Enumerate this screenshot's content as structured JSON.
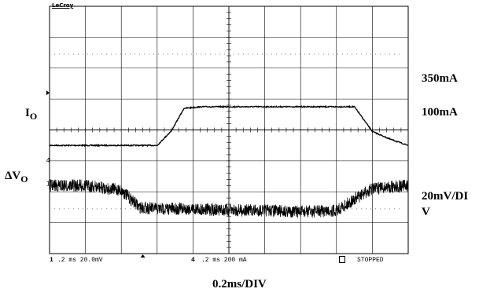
{
  "app": {
    "brand": "LeCroy",
    "status_bar": {
      "ch1_marker": "1",
      "ch1_setting": ".2 ms 20.0mV",
      "ch4_marker": "4",
      "ch4_setting": ".2 ms 200 mA",
      "run_state": "STOPPED"
    }
  },
  "labels": {
    "io_main": "I",
    "io_sub": "O",
    "dvo_main": "ΔV",
    "dvo_sub": "O",
    "level_high": "350mA",
    "level_low": "100mA",
    "vscale_line1": "20mV/DI",
    "vscale_line2": "V",
    "timebase": "0.2ms/DIV"
  },
  "chart_data": {
    "type": "line",
    "title": "",
    "xlabel": "0.2ms/DIV",
    "x_unit": "ms",
    "xlim": [
      0,
      2.0
    ],
    "grid": true,
    "divisions": {
      "x": 10,
      "y": 8
    },
    "series": [
      {
        "name": "I_O",
        "unit": "mA",
        "scale_per_div": 200,
        "reference_marker": "4",
        "x": [
          0,
          0.5,
          0.6,
          0.68,
          0.75,
          0.85,
          1.0,
          1.2,
          1.5,
          1.7,
          1.8,
          1.9,
          2.0
        ],
        "y": [
          100,
          100,
          100,
          195,
          340,
          350,
          350,
          350,
          350,
          350,
          190,
          140,
          100
        ]
      },
      {
        "name": "ΔV_O",
        "unit": "mV",
        "scale_per_div": 20,
        "reference_marker": "1",
        "x": [
          0,
          0.2,
          0.4,
          0.5,
          0.6,
          0.8,
          1.0,
          1.2,
          1.4,
          1.6,
          1.8,
          2.0
        ],
        "y": [
          0,
          0,
          -3,
          -14,
          -15,
          -15,
          -16,
          -16,
          -17,
          -16,
          -2,
          0
        ]
      }
    ]
  }
}
